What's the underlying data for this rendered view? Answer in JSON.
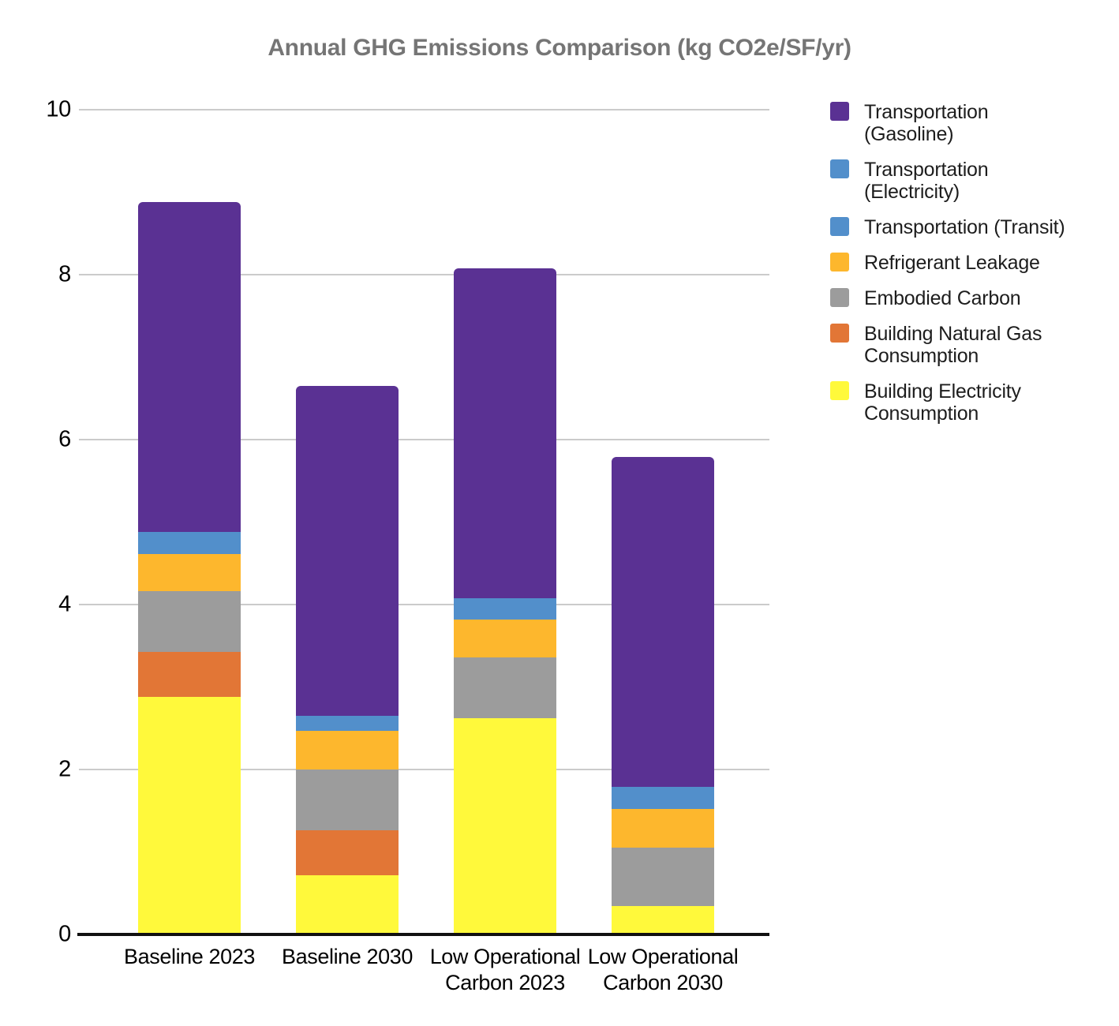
{
  "chart_data": {
    "type": "bar",
    "subtype": "stacked-vertical",
    "title": "Annual GHG Emissions Comparison (kg CO2e/SF/yr)",
    "xlabel": "",
    "ylabel": "",
    "ylim": [
      0,
      10
    ],
    "yticks": [
      0,
      2,
      4,
      6,
      8,
      10
    ],
    "grid": true,
    "legend_position": "right",
    "categories": [
      "Baseline 2023",
      "Baseline 2030",
      "Low Operational\nCarbon 2023",
      "Low Operational\nCarbon 2030"
    ],
    "series": [
      {
        "name": "Transportation (Gasoline)",
        "label": "Transportation\n(Gasoline)",
        "color": "#5a3193",
        "values": [
          4.0,
          4.0,
          4.0,
          4.0
        ]
      },
      {
        "name": "Transportation (Electricity)",
        "label": "Transportation\n(Electricity)",
        "color": "#528fcb",
        "values": [
          0,
          0,
          0,
          0
        ]
      },
      {
        "name": "Transportation (Transit)",
        "label": "Transportation (Transit)",
        "color": "#528fcb",
        "values": [
          0.27,
          0.18,
          0.26,
          0.27
        ]
      },
      {
        "name": "Refrigerant Leakage",
        "label": "Refrigerant Leakage",
        "color": "#fdb72d",
        "values": [
          0.45,
          0.47,
          0.46,
          0.47
        ]
      },
      {
        "name": "Embodied Carbon",
        "label": "Embodied Carbon",
        "color": "#9c9c9c",
        "values": [
          0.73,
          0.74,
          0.74,
          0.71
        ]
      },
      {
        "name": "Building Natural Gas Consumption",
        "label": "Building Natural Gas\nConsumption",
        "color": "#e27636",
        "values": [
          0.55,
          0.54,
          0,
          0
        ]
      },
      {
        "name": "Building Electricity Consumption",
        "label": "Building Electricity\nConsumption",
        "color": "#fff93b",
        "values": [
          2.88,
          0.72,
          2.62,
          0.34
        ]
      }
    ],
    "bar_totals": [
      8.88,
      6.65,
      8.08,
      5.79
    ]
  }
}
